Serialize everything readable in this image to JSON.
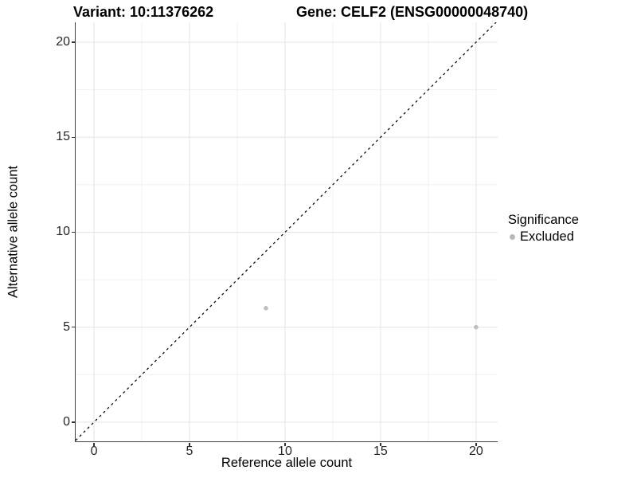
{
  "chart_data": {
    "type": "scatter",
    "title_left": "Variant: 10:11376262",
    "title_right": "Gene: CELF2 (ENSG00000048740)",
    "xlabel": "Reference allele count",
    "ylabel": "Alternative allele count",
    "xlim": [
      -0.96,
      21.13
    ],
    "ylim": [
      -1.01,
      21.05
    ],
    "xticks": [
      0,
      5,
      10,
      15,
      20
    ],
    "yticks": [
      0,
      5,
      10,
      15,
      20
    ],
    "xticks_minor": [
      2.5,
      7.5,
      12.5,
      17.5
    ],
    "yticks_minor": [
      2.5,
      7.5,
      12.5,
      17.5
    ],
    "grid": "major+minor",
    "legend_position": "right",
    "series": [
      {
        "name": "Excluded",
        "color": "#bfbfbf",
        "point_radius": 2.8,
        "points": [
          [
            9,
            6
          ],
          [
            20,
            5
          ]
        ]
      }
    ],
    "reference_line": {
      "slope": 1,
      "intercept": 0,
      "style": "dashed",
      "color": "#111111"
    }
  },
  "legend": {
    "title": "Significance",
    "items": [
      {
        "label": "Excluded",
        "color": "#b9b9b9"
      }
    ]
  },
  "colors": {
    "background": "#ffffff",
    "grid_major": "#e4e4e4",
    "grid_minor": "#f1f1f1",
    "axis_line": "#404040",
    "tick_mark": "#333333",
    "tick_text": "#262626"
  }
}
